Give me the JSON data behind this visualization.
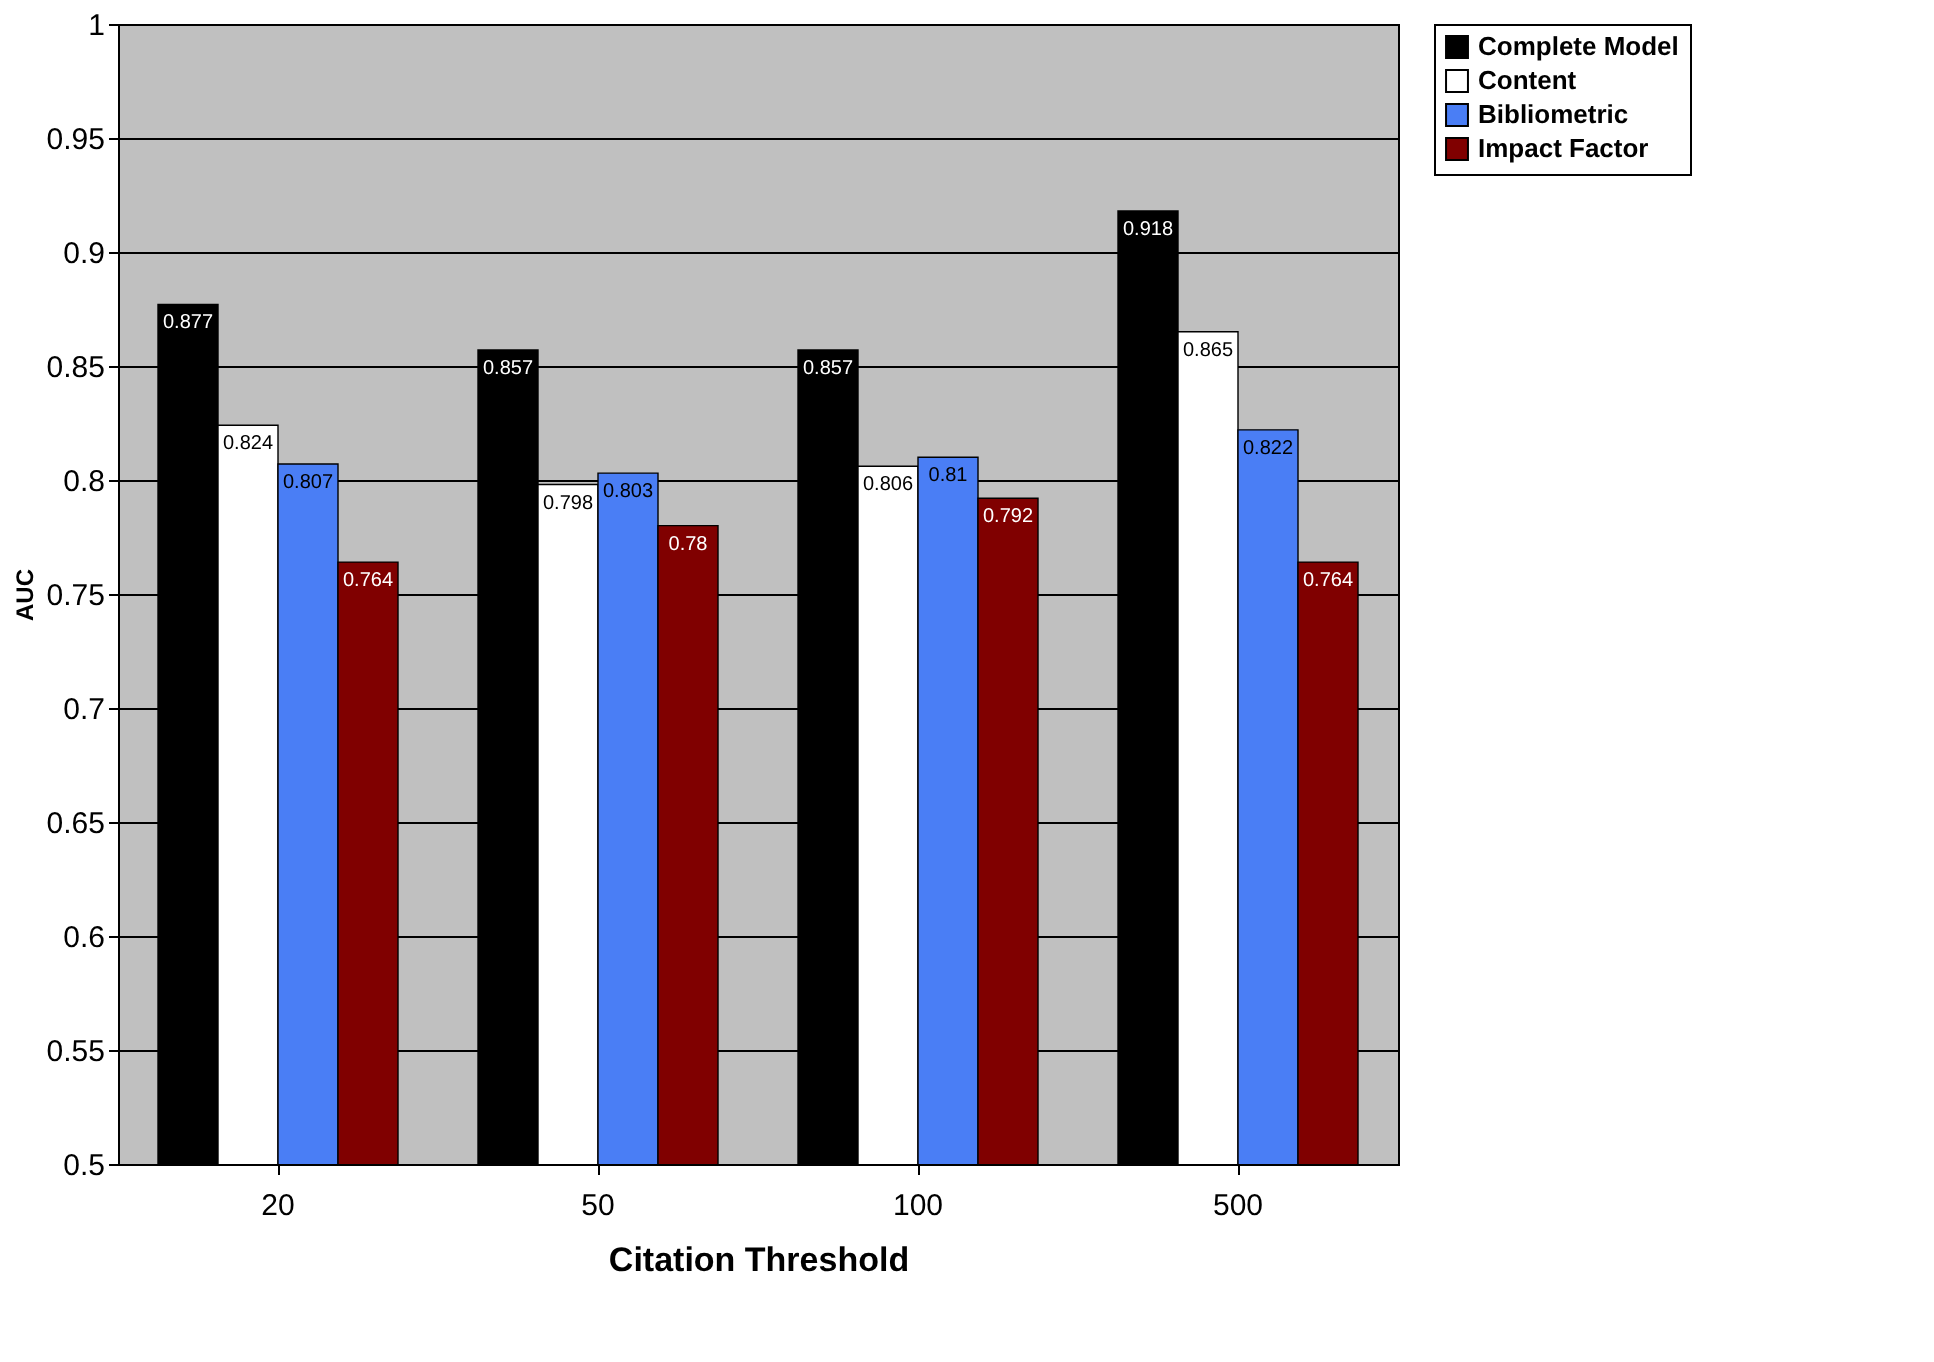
{
  "chart_data": {
    "type": "bar",
    "xlabel": "Citation Threshold",
    "ylabel": "AUC",
    "categories": [
      "20",
      "50",
      "100",
      "500"
    ],
    "series": [
      {
        "name": "Complete Model",
        "color": "#000000",
        "values": [
          0.877,
          0.857,
          0.857,
          0.918
        ]
      },
      {
        "name": "Content",
        "color": "#ffffff",
        "values": [
          0.824,
          0.798,
          0.806,
          0.865
        ]
      },
      {
        "name": "Bibliometric",
        "color": "#4a7ef5",
        "values": [
          0.807,
          0.803,
          0.81,
          0.822
        ]
      },
      {
        "name": "Impact Factor",
        "color": "#800000",
        "values": [
          0.764,
          0.78,
          0.792,
          0.764
        ]
      }
    ],
    "ylim": [
      0.5,
      1
    ],
    "yticks": [
      0.5,
      0.55,
      0.6,
      0.65,
      0.7,
      0.75,
      0.8,
      0.85,
      0.9,
      0.95,
      1
    ],
    "grid": "y",
    "legend": "right",
    "data_labels": true
  }
}
